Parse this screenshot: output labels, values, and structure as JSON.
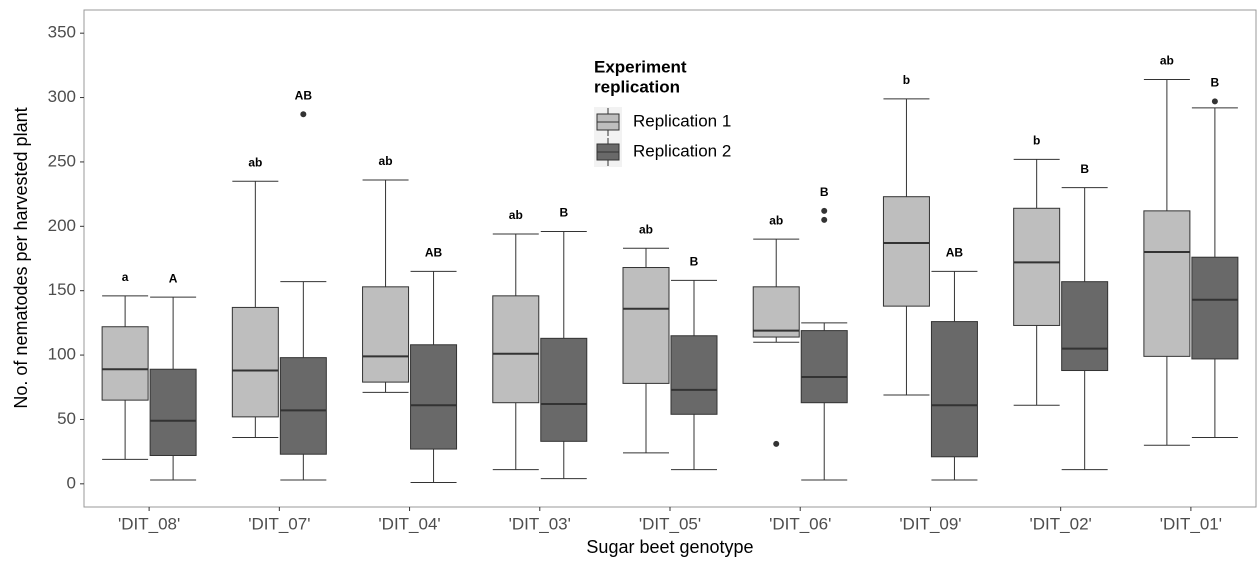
{
  "chart_data": {
    "type": "box",
    "x_label": "Sugar beet genotype",
    "y_label": "No. of nematodes per harvested plant",
    "legend_title": [
      "Experiment",
      "replication"
    ],
    "legend_position": "top-center",
    "categories": [
      "'DIT_08'",
      "'DIT_07'",
      "'DIT_04'",
      "'DIT_03'",
      "'DIT_05'",
      "'DIT_06'",
      "'DIT_09'",
      "'DIT_02'",
      "'DIT_01'"
    ],
    "ylim": [
      -18,
      368
    ],
    "yticks": [
      0,
      50,
      100,
      150,
      200,
      250,
      300,
      350
    ],
    "series": [
      {
        "name": "Replication 1",
        "color": "#bebebe",
        "min": [
          19,
          36,
          71,
          11,
          24,
          110,
          69,
          61,
          30
        ],
        "q1": [
          65,
          52,
          79,
          63,
          78,
          114,
          138,
          123,
          99
        ],
        "median": [
          89,
          88,
          99,
          101,
          136,
          119,
          187,
          172,
          180
        ],
        "q3": [
          122,
          137,
          153,
          146,
          168,
          153,
          223,
          214,
          212
        ],
        "max": [
          146,
          235,
          236,
          194,
          183,
          190,
          299,
          252,
          314
        ],
        "outliers": [
          [],
          [],
          [],
          [],
          [],
          [
            31
          ],
          [],
          [],
          []
        ],
        "letters": [
          "a",
          "ab",
          "ab",
          "ab",
          "ab",
          "ab",
          "b",
          "b",
          "ab"
        ]
      },
      {
        "name": "Replication 2",
        "color": "#696969",
        "min": [
          3,
          3,
          1,
          4,
          11,
          3,
          3,
          11,
          36
        ],
        "q1": [
          22,
          23,
          27,
          33,
          54,
          63,
          21,
          88,
          97
        ],
        "median": [
          49,
          57,
          61,
          62,
          73,
          83,
          61,
          105,
          143
        ],
        "q3": [
          89,
          98,
          108,
          113,
          115,
          119,
          126,
          157,
          176
        ],
        "max": [
          145,
          157,
          165,
          196,
          158,
          125,
          165,
          230,
          292
        ],
        "outliers": [
          [],
          [
            287
          ],
          [],
          [],
          [],
          [
            205,
            212
          ],
          [],
          [],
          [
            297
          ]
        ],
        "letters": [
          "A",
          "AB",
          "AB",
          "B",
          "B",
          "B",
          "AB",
          "B",
          "B"
        ]
      }
    ]
  }
}
